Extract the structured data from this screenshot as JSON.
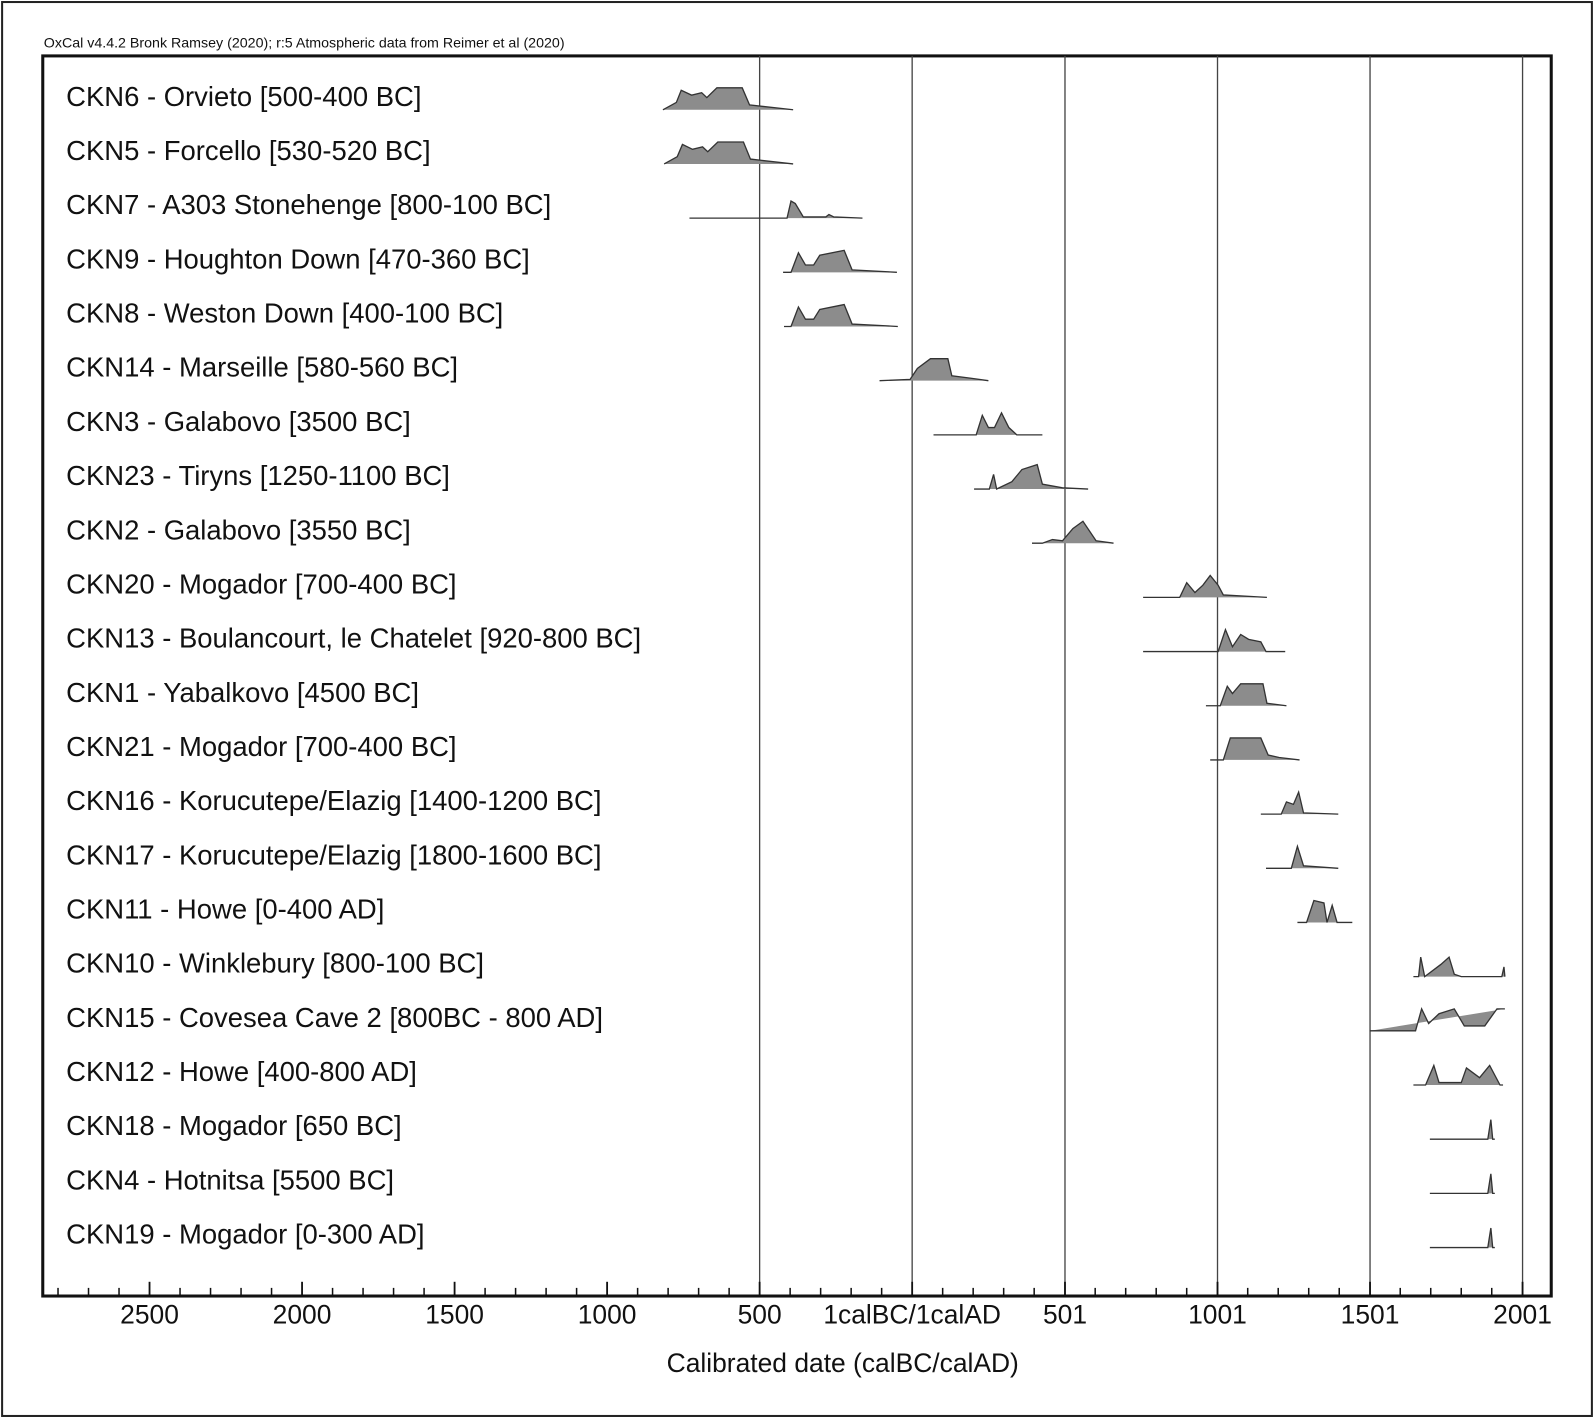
{
  "chart_data": {
    "type": "multiplot",
    "title": "OxCal v4.4.2 Bronk Ramsey (2020); r:5 Atmospheric data from Reimer et al (2020)",
    "x_label": "Calibrated date (calBC/calAD)",
    "color": "#8c8c8c",
    "xlim": [
      -2850,
      2095
    ],
    "xticks": [
      {
        "value": -2500,
        "label": "2500"
      },
      {
        "value": -2000,
        "label": "2000"
      },
      {
        "value": -1500,
        "label": "1500"
      },
      {
        "value": -1000,
        "label": "1000"
      },
      {
        "value": -500,
        "label": "500"
      },
      {
        "value": 0,
        "label": "1calBC/1calAD"
      },
      501,
      1001,
      1501,
      2001
    ],
    "xminorticks": [
      -2800,
      -2700,
      -2600,
      -2400,
      -2300,
      -2200,
      -2100,
      -1900,
      -1800,
      -1700,
      -1600,
      -1400,
      -1300,
      -1200,
      -1100,
      -900,
      -800,
      -700,
      -600,
      -400,
      -300,
      -200,
      -100,
      100,
      200,
      300,
      400,
      600,
      700,
      800,
      900,
      1100,
      1200,
      1300,
      1400,
      1600,
      1700,
      1800,
      1900
    ],
    "xgrid": [
      -500,
      0,
      501,
      1001,
      1501,
      2001
    ],
    "series": [
      {
        "name": "CKN6 - Orvieto [500-400 BC]",
        "x": [
          -817,
          -773,
          -757,
          -723,
          -690,
          -673,
          -640,
          -557,
          -533,
          -390
        ],
        "density": [
          0,
          0.3,
          0.8,
          0.6,
          0.7,
          0.5,
          0.9,
          0.9,
          0.2,
          0
        ]
      },
      {
        "name": "CKN5 - Forcello [530-520 BC]",
        "x": [
          -813,
          -770,
          -753,
          -720,
          -687,
          -670,
          -637,
          -553,
          -530,
          -390
        ],
        "density": [
          0,
          0.3,
          0.8,
          0.6,
          0.7,
          0.5,
          0.9,
          0.9,
          0.2,
          0
        ]
      },
      {
        "name": "CKN7 - A303 Stonehenge [800-100 BC]",
        "x": [
          -730,
          -410,
          -397,
          -383,
          -357,
          -283,
          -273,
          -257,
          -163
        ],
        "density": [
          0,
          0,
          0.7,
          0.6,
          0.05,
          0.05,
          0.15,
          0.05,
          0
        ]
      },
      {
        "name": "CKN9 - Houghton Down [470-360 BC]",
        "x": [
          -423,
          -397,
          -373,
          -350,
          -323,
          -303,
          -223,
          -197,
          -50
        ],
        "density": [
          0,
          0,
          0.8,
          0.3,
          0.3,
          0.7,
          0.9,
          0.1,
          0
        ]
      },
      {
        "name": "CKN8 - Weston Down [400-100 BC]",
        "x": [
          -420,
          -397,
          -373,
          -350,
          -323,
          -303,
          -223,
          -197,
          -47
        ],
        "density": [
          0,
          0,
          0.8,
          0.3,
          0.3,
          0.7,
          0.9,
          0.1,
          0
        ]
      },
      {
        "name": "CKN14 - Marseille [580-560 BC]",
        "x": [
          -107,
          -7,
          17,
          60,
          117,
          130,
          193,
          250
        ],
        "density": [
          0,
          0.05,
          0.5,
          0.9,
          0.9,
          0.2,
          0.1,
          0
        ]
      },
      {
        "name": "CKN3 - Galabovo [3500 BC]",
        "x": [
          70,
          210,
          230,
          250,
          270,
          293,
          317,
          343,
          427
        ],
        "density": [
          0,
          0,
          0.8,
          0.3,
          0.3,
          0.9,
          0.3,
          0,
          0
        ]
      },
      {
        "name": "CKN23 - Tiryns [1250-1100 BC]",
        "x": [
          203,
          253,
          267,
          277,
          327,
          360,
          410,
          427,
          493,
          577
        ],
        "density": [
          0,
          0,
          0.6,
          0,
          0.3,
          0.8,
          1,
          0.2,
          0.05,
          0
        ]
      },
      {
        "name": "CKN2 - Galabovo [3550 BC]",
        "x": [
          393,
          427,
          460,
          493,
          527,
          560,
          603,
          660
        ],
        "density": [
          0,
          0,
          0.15,
          0.1,
          0.6,
          0.9,
          0.1,
          0
        ]
      },
      {
        "name": "CKN20 - Mogador [700-400 BC]",
        "x": [
          757,
          877,
          900,
          927,
          953,
          977,
          1003,
          1020,
          1163
        ],
        "density": [
          0,
          0,
          0.6,
          0.2,
          0.5,
          0.9,
          0.5,
          0.1,
          0
        ]
      },
      {
        "name": "CKN13 - Boulancourt, le Chatelet [920-800 BC]",
        "x": [
          757,
          1003,
          1027,
          1050,
          1077,
          1103,
          1143,
          1160,
          1223
        ],
        "density": [
          0,
          0,
          0.9,
          0.2,
          0.7,
          0.5,
          0.4,
          0,
          0
        ]
      },
      {
        "name": "CKN1 - Yabalkovo [4500 BC]",
        "x": [
          963,
          1010,
          1033,
          1050,
          1077,
          1150,
          1163,
          1227
        ],
        "density": [
          0,
          0,
          0.8,
          0.5,
          0.9,
          0.9,
          0.1,
          0
        ]
      },
      {
        "name": "CKN21 - Mogador [700-400 BC]",
        "x": [
          977,
          1020,
          1043,
          1143,
          1167,
          1203,
          1270
        ],
        "density": [
          0,
          0,
          0.9,
          0.9,
          0.2,
          0.1,
          0
        ]
      },
      {
        "name": "CKN16 - Korucutepe/Elazig [1400-1200 BC]",
        "x": [
          1143,
          1210,
          1227,
          1250,
          1267,
          1283,
          1397
        ],
        "density": [
          0,
          0,
          0.5,
          0.4,
          0.9,
          0.05,
          0
        ]
      },
      {
        "name": "CKN17 - Korucutepe/Elazig [1800-1600 BC]",
        "x": [
          1160,
          1243,
          1263,
          1283,
          1397
        ],
        "density": [
          0,
          0,
          0.9,
          0.1,
          0
        ]
      },
      {
        "name": "CKN11 - Howe [0-400 AD]",
        "x": [
          1263,
          1293,
          1317,
          1350,
          1360,
          1377,
          1393,
          1443
        ],
        "density": [
          0,
          0,
          0.9,
          0.8,
          0,
          0.7,
          0,
          0
        ]
      },
      {
        "name": "CKN10 - Winklebury [800-100 BC]",
        "x": [
          1643,
          1660,
          1667,
          1680,
          1733,
          1760,
          1777,
          1800,
          1933,
          1940,
          1943
        ],
        "density": [
          0,
          0,
          0.8,
          0,
          0.5,
          0.8,
          0.1,
          0,
          0,
          0.4,
          0
        ]
      },
      {
        "name": "CKN15 - Covesea Cave 2 [800BC - 800 AD]",
        "x": [
          1500,
          1650,
          1670,
          1693,
          1727,
          1777,
          1810,
          1877,
          1917,
          1943
        ],
        "density": [
          0,
          0,
          0.9,
          0.3,
          0.7,
          0.9,
          0.2,
          0.2,
          0.9,
          0.9
        ]
      },
      {
        "name": "CKN12 - Howe [400-800 AD]",
        "x": [
          1643,
          1683,
          1710,
          1727,
          1800,
          1817,
          1860,
          1893,
          1927,
          1937
        ],
        "density": [
          0,
          0,
          0.8,
          0.1,
          0.1,
          0.7,
          0.3,
          0.8,
          0,
          0
        ]
      },
      {
        "name": "CKN18 - Mogador [650 BC]",
        "x": [
          1697,
          1887,
          1897,
          1903,
          1910
        ],
        "density": [
          0,
          0,
          0.8,
          0,
          0
        ]
      },
      {
        "name": "CKN4 - Hotnitsa [5500 BC]",
        "x": [
          1697,
          1887,
          1897,
          1903,
          1910
        ],
        "density": [
          0,
          0,
          0.8,
          0,
          0
        ]
      },
      {
        "name": "CKN19 - Mogador [0-300 AD]",
        "x": [
          1697,
          1887,
          1897,
          1903,
          1910
        ],
        "density": [
          0,
          0,
          0.8,
          0,
          0
        ]
      }
    ]
  }
}
